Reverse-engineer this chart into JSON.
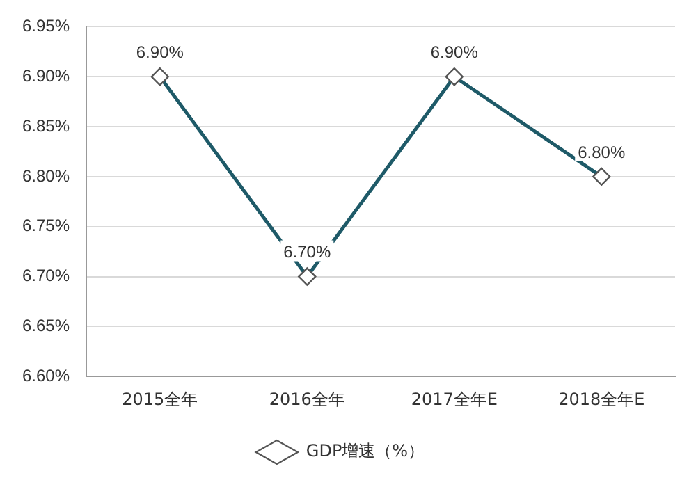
{
  "chart_data": {
    "type": "line",
    "categories": [
      "2015全年",
      "2016全年",
      "2017全年E",
      "2018全年E"
    ],
    "series": [
      {
        "name": "GDP增速（%）",
        "color": "#1e5a68",
        "values": [
          6.9,
          6.7,
          6.9,
          6.8
        ],
        "value_labels": [
          "6.90%",
          "6.70%",
          "6.90%",
          "6.80%"
        ]
      }
    ],
    "ylim": [
      6.6,
      6.95
    ],
    "yticks": [
      {
        "value": 6.6,
        "label": "6.60%"
      },
      {
        "value": 6.65,
        "label": "6.65%"
      },
      {
        "value": 6.7,
        "label": "6.70%"
      },
      {
        "value": 6.75,
        "label": "6.75%"
      },
      {
        "value": 6.8,
        "label": "6.80%"
      },
      {
        "value": 6.85,
        "label": "6.85%"
      },
      {
        "value": 6.9,
        "label": "6.90%"
      },
      {
        "value": 6.95,
        "label": "6.95%"
      }
    ],
    "grid": "y",
    "legend": "bottom",
    "marker": "diamond",
    "line_style": "solid"
  }
}
